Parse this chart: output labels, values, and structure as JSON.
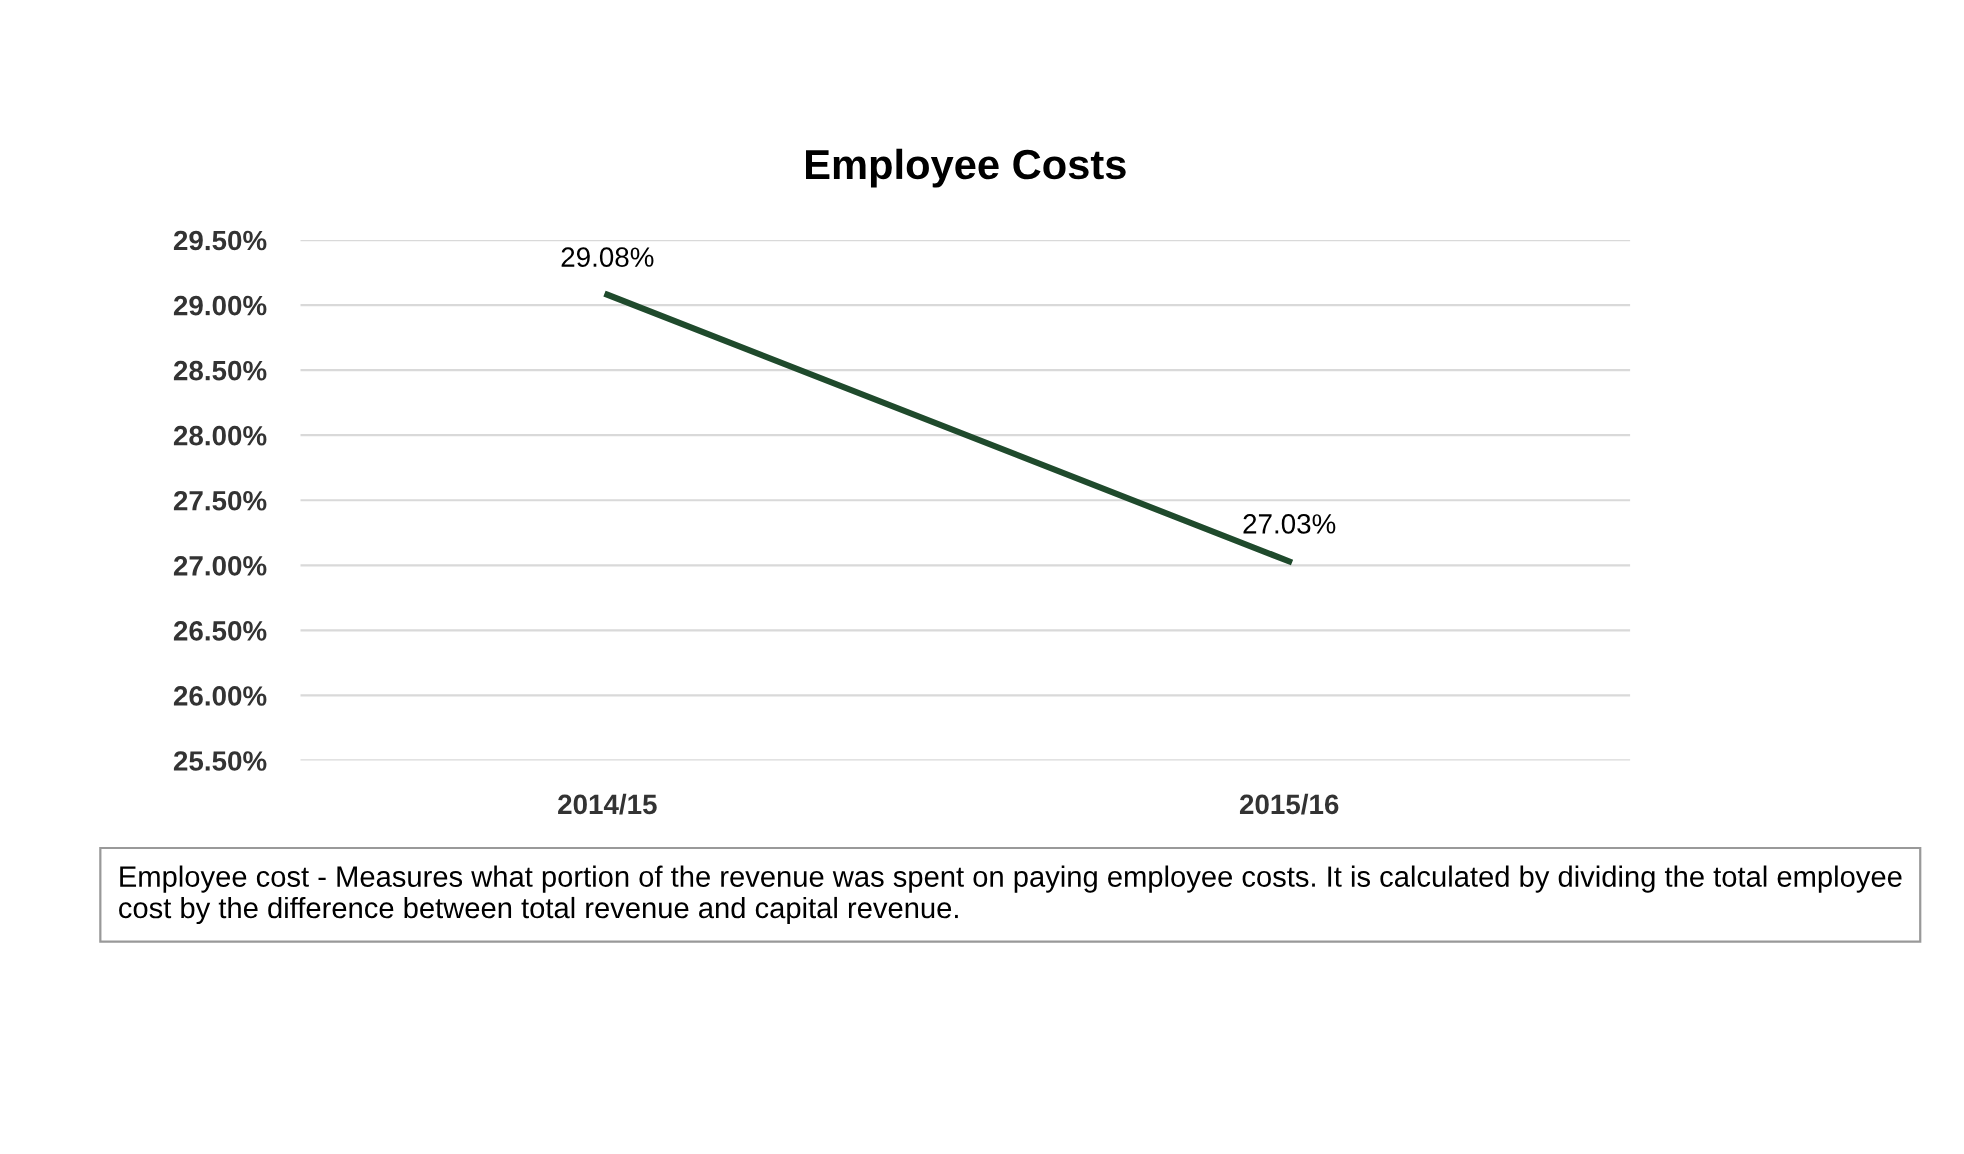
{
  "chart_data": {
    "type": "line",
    "title": "Employee Costs",
    "categories": [
      "2014/15",
      "2015/16"
    ],
    "series": [
      {
        "color": "#1f4a2c",
        "values": [
          29.08,
          27.03
        ],
        "value_labels": [
          "29.08%",
          "27.03%"
        ]
      }
    ],
    "ylim": [
      25.5,
      29.5
    ],
    "yticks": [
      {
        "value": 25.5,
        "label": "25.50%"
      },
      {
        "value": 26.0,
        "label": "26.00%"
      },
      {
        "value": 26.5,
        "label": "26.50%"
      },
      {
        "value": 27.0,
        "label": "27.00%"
      },
      {
        "value": 27.5,
        "label": "27.50%"
      },
      {
        "value": 28.0,
        "label": "28.00%"
      },
      {
        "value": 28.5,
        "label": "28.50%"
      },
      {
        "value": 29.0,
        "label": "29.00%"
      },
      {
        "value": 29.5,
        "label": "29.50%"
      }
    ],
    "grid": "y",
    "marker": "none",
    "line_style": "solid",
    "annotations": [
      "Employee cost - Measures what portion of the revenue was spent on paying employee costs. It is calculated by dividing the total employee cost by the difference between total revenue and capital revenue."
    ]
  }
}
